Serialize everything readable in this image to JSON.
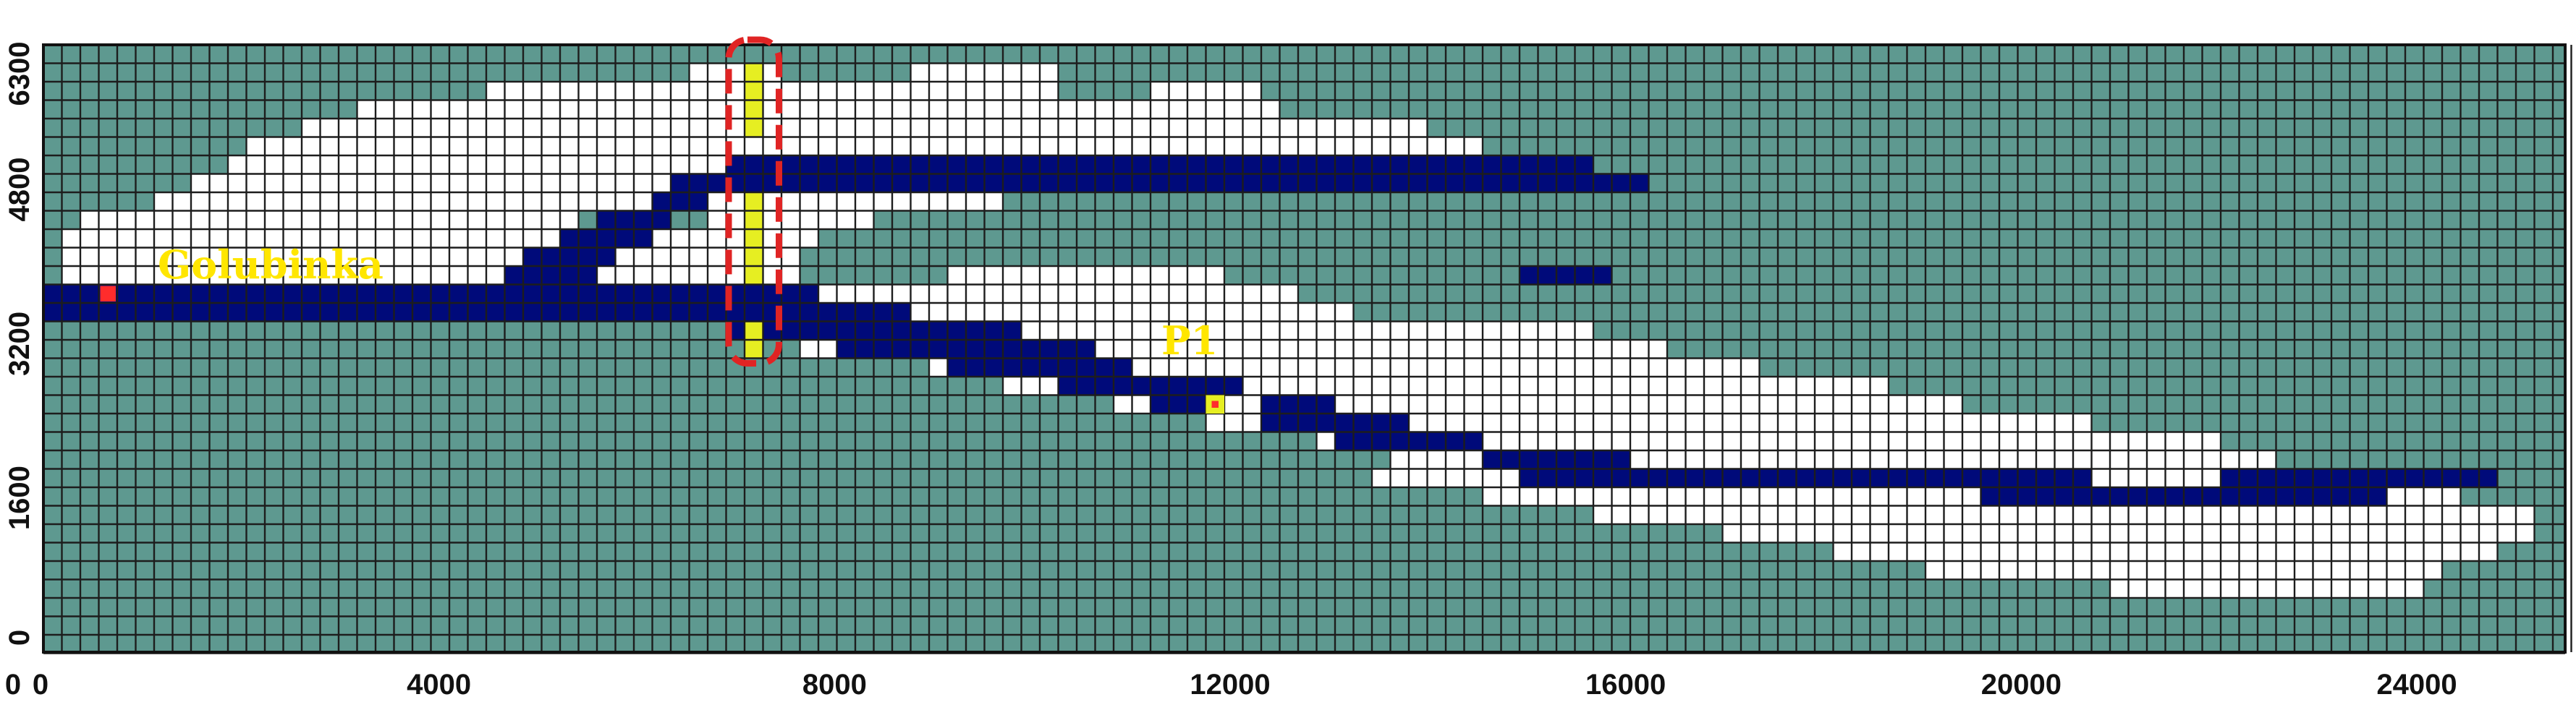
{
  "domain": "Groundwater model grid",
  "colors": {
    "inactive": "#5e9990",
    "active": "#ffffff",
    "river": "#000a7a",
    "observation_column": "#e6ee22",
    "grid_line": "#1d1d1d",
    "highlight_box": "#e02424",
    "label_yellow": "#ffe600",
    "golubinka_cell": "#ff2c2c"
  },
  "axes": {
    "x_ticks": [
      "0",
      "4000",
      "8000",
      "12000",
      "16000",
      "20000",
      "24000"
    ],
    "x_tick_values": [
      0,
      4000,
      8000,
      12000,
      16000,
      20000,
      24000
    ],
    "y_ticks": [
      "0",
      "1600",
      "3200",
      "4800",
      "6300"
    ],
    "y_tick_values": [
      0,
      1600,
      3200,
      4800,
      6300
    ],
    "x_range": [
      0,
      25500
    ],
    "y_range": [
      0,
      6300
    ],
    "extra_corner_label": "0"
  },
  "labels": {
    "golubinka": "Golubinka",
    "p1": "P1"
  }
}
